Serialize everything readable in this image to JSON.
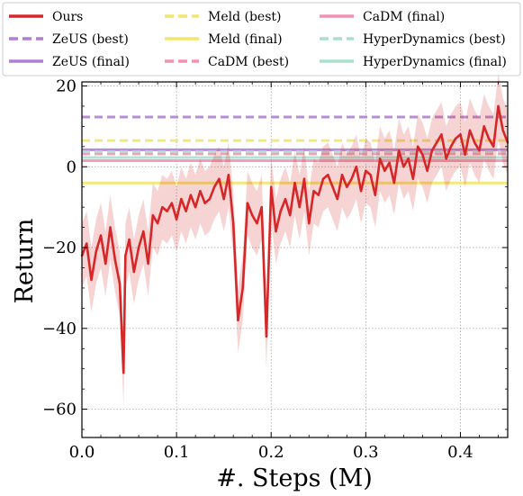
{
  "chart_data": {
    "type": "line",
    "title": "",
    "xlabel": "#. Steps (M)",
    "ylabel": "Return",
    "xlim": [
      0.0,
      0.45
    ],
    "ylim": [
      -67,
      21
    ],
    "xticks": [
      0.0,
      0.1,
      0.2,
      0.3,
      0.4
    ],
    "xtick_labels": [
      "0.0",
      "0.1",
      "0.2",
      "0.3",
      "0.4"
    ],
    "yticks": [
      -60,
      -40,
      -20,
      0,
      20
    ],
    "ytick_labels": [
      "−60",
      "−40",
      "−20",
      "0",
      "20"
    ],
    "grid": true,
    "legend_position": "top",
    "legend": [
      {
        "label": "Ours",
        "color": "#d62728",
        "style": "solid"
      },
      {
        "label": "ZeUS (best)",
        "color": "#b07fd1",
        "style": "dashed"
      },
      {
        "label": "ZeUS (final)",
        "color": "#b07fd1",
        "style": "solid"
      },
      {
        "label": "Meld (best)",
        "color": "#f2e66d",
        "style": "dashed"
      },
      {
        "label": "Meld (final)",
        "color": "#f2e66d",
        "style": "solid"
      },
      {
        "label": "CaDM (best)",
        "color": "#f391b3",
        "style": "dashed"
      },
      {
        "label": "CaDM (final)",
        "color": "#f391b3",
        "style": "solid"
      },
      {
        "label": "HyperDynamics (best)",
        "color": "#a8e0d0",
        "style": "dashed"
      },
      {
        "label": "HyperDynamics (final)",
        "color": "#a8e0d0",
        "style": "solid"
      }
    ],
    "horizontal_lines": [
      {
        "name": "ZeUS (best)",
        "value": 12.3,
        "color": "#b07fd1",
        "style": "dashed"
      },
      {
        "name": "ZeUS (final)",
        "value": 4.2,
        "color": "#b07fd1",
        "style": "solid"
      },
      {
        "name": "Meld (best)",
        "value": 6.5,
        "color": "#f2e66d",
        "style": "dashed"
      },
      {
        "name": "Meld (final)",
        "value": -4.0,
        "color": "#f2e66d",
        "style": "solid"
      },
      {
        "name": "CaDM (best)",
        "value": 3.2,
        "color": "#f391b3",
        "style": "dashed"
      },
      {
        "name": "CaDM (final)",
        "value": 1.5,
        "color": "#f391b3",
        "style": "solid"
      },
      {
        "name": "HyperDynamics (best)",
        "value": 3.7,
        "color": "#a8e0d0",
        "style": "dashed"
      },
      {
        "name": "HyperDynamics (final)",
        "value": 2.3,
        "color": "#a8e0d0",
        "style": "solid"
      }
    ],
    "series": [
      {
        "name": "Ours",
        "color": "#d62728",
        "x": [
          0.0,
          0.005,
          0.01,
          0.015,
          0.02,
          0.025,
          0.03,
          0.035,
          0.04,
          0.044,
          0.046,
          0.05,
          0.055,
          0.06,
          0.065,
          0.07,
          0.075,
          0.08,
          0.085,
          0.09,
          0.095,
          0.1,
          0.105,
          0.11,
          0.115,
          0.12,
          0.125,
          0.13,
          0.135,
          0.14,
          0.145,
          0.15,
          0.155,
          0.16,
          0.165,
          0.17,
          0.175,
          0.18,
          0.185,
          0.19,
          0.195,
          0.2,
          0.205,
          0.21,
          0.215,
          0.22,
          0.225,
          0.23,
          0.235,
          0.24,
          0.245,
          0.25,
          0.255,
          0.26,
          0.265,
          0.27,
          0.275,
          0.28,
          0.285,
          0.29,
          0.295,
          0.3,
          0.305,
          0.31,
          0.315,
          0.32,
          0.325,
          0.33,
          0.335,
          0.34,
          0.345,
          0.35,
          0.355,
          0.36,
          0.365,
          0.37,
          0.375,
          0.38,
          0.385,
          0.39,
          0.395,
          0.4,
          0.405,
          0.41,
          0.415,
          0.42,
          0.425,
          0.43,
          0.435,
          0.44,
          0.445,
          0.45
        ],
        "y": [
          -22,
          -19,
          -28,
          -21,
          -17,
          -24,
          -15,
          -23,
          -29,
          -51,
          -22,
          -18,
          -26,
          -20,
          -16,
          -24,
          -12,
          -14,
          -10,
          -11,
          -9,
          -13,
          -8,
          -11,
          -7,
          -10,
          -6,
          -9,
          -8,
          -5,
          -3,
          -8,
          -2,
          -14,
          -38,
          -30,
          -9,
          -12,
          -14,
          -10,
          -42,
          -5,
          -16,
          -11,
          -8,
          -12,
          -4,
          -10,
          -3,
          -14,
          -6,
          -7,
          -3,
          -2,
          -5,
          -8,
          -2,
          -5,
          -3,
          0,
          -6,
          -1,
          -2,
          -7,
          2,
          -1,
          1,
          -4,
          4,
          0,
          2,
          -3,
          5,
          3,
          -1,
          4,
          6,
          8,
          2,
          5,
          7,
          8,
          3,
          9,
          6,
          4,
          10,
          7,
          5,
          15,
          9,
          6
        ],
        "band_halfwidth": 8
      }
    ]
  }
}
